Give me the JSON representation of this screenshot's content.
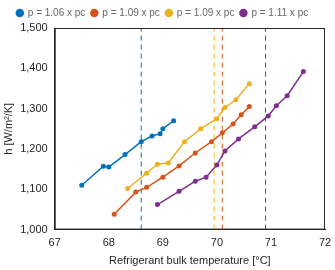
{
  "chart_data": {
    "type": "line",
    "xlabel": "Refrigerant bulk temperature [°C]",
    "ylabel": "h [W/m²/K]",
    "xlim": [
      67,
      72
    ],
    "xticks": [
      67,
      68,
      69,
      70,
      71,
      72
    ],
    "ylim": [
      1000,
      1500
    ],
    "yticks": [
      1000,
      1100,
      1200,
      1300,
      1400,
      1500
    ],
    "grid": false,
    "legend": "top",
    "series": [
      {
        "name": "p = 1.06 x pc",
        "color": "#0072BD",
        "marker": "circle",
        "line_style": "solid",
        "vline": 68.6,
        "x": [
          67.5,
          67.9,
          68.0,
          68.3,
          68.6,
          68.8,
          68.95,
          69.0,
          69.2
        ],
        "values": [
          1110,
          1157,
          1155,
          1186,
          1218,
          1232,
          1238,
          1250,
          1270
        ]
      },
      {
        "name": "p = 1.09 x pc",
        "color": "#D95319",
        "marker": "circle",
        "line_style": "solid",
        "vline": 70.1,
        "x": [
          68.1,
          68.5,
          68.7,
          69.0,
          69.3,
          69.6,
          69.9,
          70.1,
          70.3,
          70.45,
          70.6
        ],
        "values": [
          1038,
          1093,
          1105,
          1130,
          1158,
          1190,
          1218,
          1240,
          1262,
          1285,
          1305
        ]
      },
      {
        "name": "p = 1.09 x pc",
        "color": "#EDB120",
        "marker": "circle",
        "line_style": "solid",
        "vline": 69.95,
        "x": [
          68.35,
          68.7,
          68.9,
          69.1,
          69.4,
          69.7,
          70.0,
          70.15,
          70.35,
          70.6
        ],
        "values": [
          1102,
          1140,
          1162,
          1165,
          1218,
          1250,
          1275,
          1303,
          1322,
          1362
        ]
      },
      {
        "name": "p = 1.11 x pc",
        "color": "#7E2F8E",
        "marker": "circle",
        "line_style": "solid",
        "vline": 70.9,
        "x": [
          68.9,
          69.3,
          69.6,
          69.8,
          70.0,
          70.15,
          70.4,
          70.7,
          70.95,
          71.1,
          71.3,
          71.6
        ],
        "values": [
          1062,
          1095,
          1120,
          1130,
          1160,
          1195,
          1225,
          1255,
          1282,
          1307,
          1332,
          1392
        ]
      }
    ]
  }
}
